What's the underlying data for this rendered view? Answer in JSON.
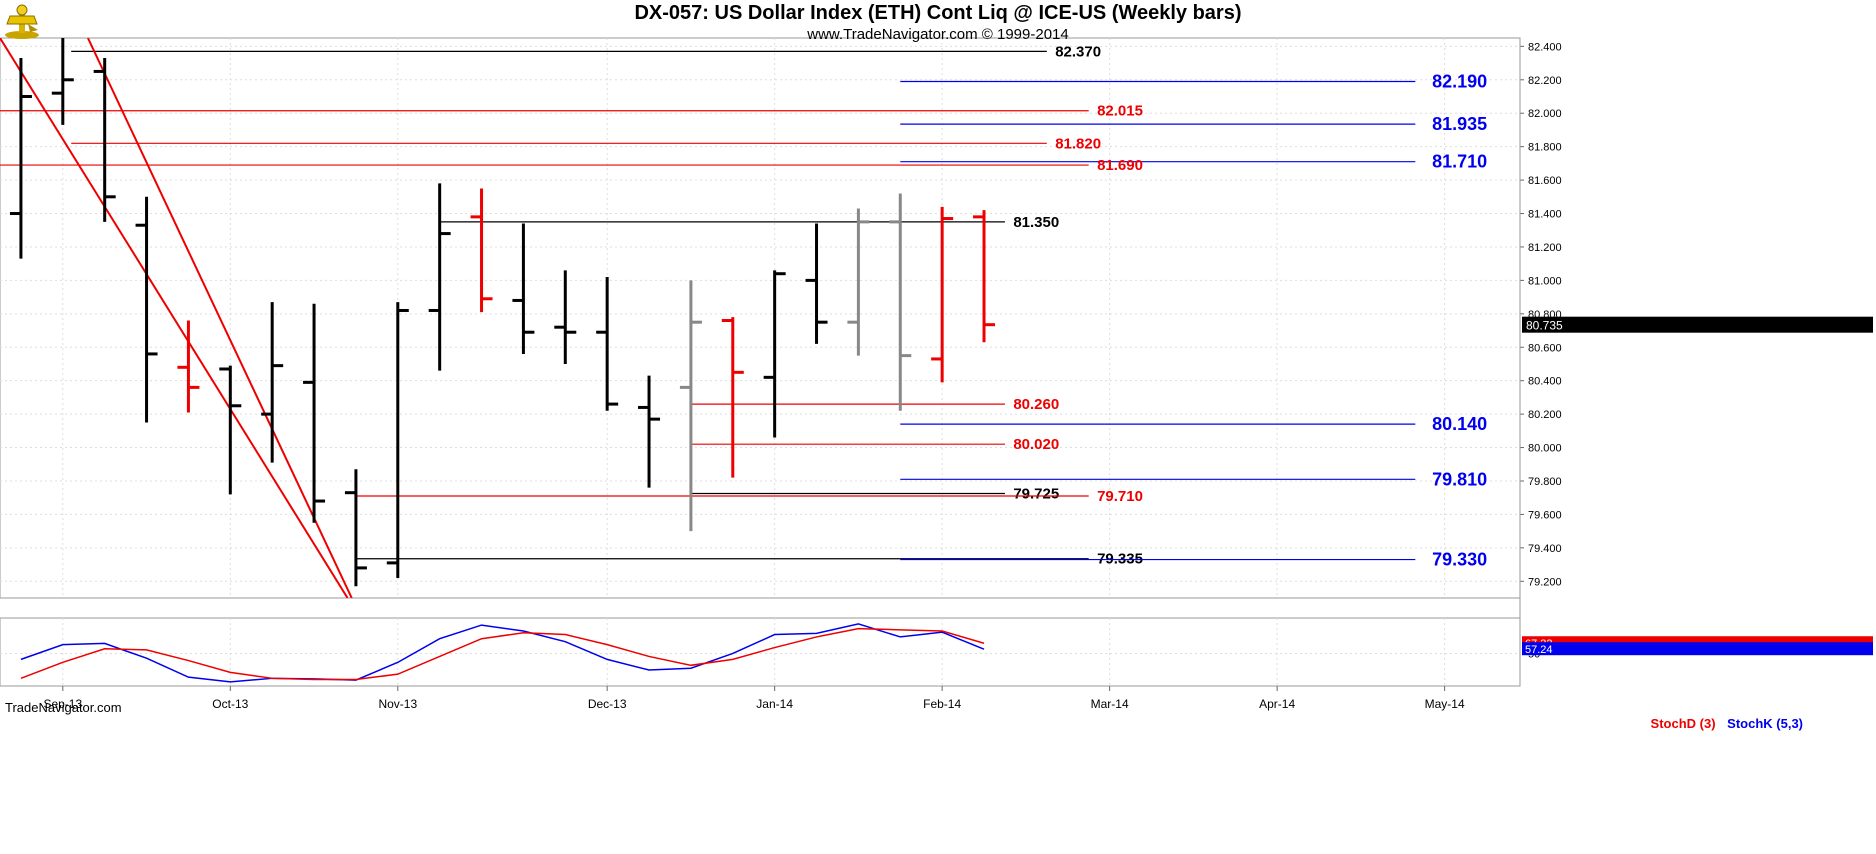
{
  "header": {
    "title": "DX-057:  US Dollar Index (ETH) Cont Liq @ ICE-US  (Weekly bars)",
    "subtitle": "www.TradeNavigator.com © 1999-2014"
  },
  "watermark": "TradeNavigator.com",
  "colors": {
    "black": "#000000",
    "red": "#ee0000",
    "gray": "#888888",
    "blue": "#0000ee",
    "grid": "#dddddd",
    "last_price_bg": "#000000",
    "stoch_d_bg": "#ee0000",
    "stoch_k_bg": "#0000ee"
  },
  "chart_data": [
    {
      "type": "ohlc",
      "title": "DX-057:  US Dollar Index (ETH) Cont Liq @ ICE-US  (Weekly bars)",
      "y_axis_side": "right",
      "ylim": [
        79.1,
        82.45
      ],
      "y_ticks": [
        "82.400",
        "82.200",
        "82.000",
        "81.800",
        "81.600",
        "81.400",
        "81.200",
        "81.000",
        "80.800",
        "80.600",
        "80.400",
        "80.200",
        "80.000",
        "79.800",
        "79.600",
        "79.400",
        "79.200"
      ],
      "x_labels": [
        {
          "i": 1.0,
          "label": "Sep-13"
        },
        {
          "i": 5.0,
          "label": "Oct-13"
        },
        {
          "i": 9.0,
          "label": "Nov-13"
        },
        {
          "i": 14.0,
          "label": "Dec-13"
        },
        {
          "i": 18.0,
          "label": "Jan-14"
        },
        {
          "i": 22.0,
          "label": "Feb-14"
        },
        {
          "i": 26.0,
          "label": "Mar-14"
        },
        {
          "i": 30.0,
          "label": "Apr-14"
        },
        {
          "i": 34.0,
          "label": "May-14"
        }
      ],
      "x_range": [
        -0.5,
        35.8
      ],
      "last_price": "80.735",
      "last_price_value": 80.735,
      "bars": [
        {
          "i": 0,
          "o": 81.4,
          "h": 82.33,
          "l": 81.13,
          "c": 82.1,
          "color": "black"
        },
        {
          "i": 1,
          "o": 82.12,
          "h": 82.5,
          "l": 81.93,
          "c": 82.2,
          "color": "black"
        },
        {
          "i": 2,
          "o": 82.25,
          "h": 82.33,
          "l": 81.35,
          "c": 81.5,
          "color": "black"
        },
        {
          "i": 3,
          "o": 81.33,
          "h": 81.5,
          "l": 80.15,
          "c": 80.56,
          "color": "black"
        },
        {
          "i": 4,
          "o": 80.48,
          "h": 80.76,
          "l": 80.21,
          "c": 80.36,
          "color": "red"
        },
        {
          "i": 5,
          "o": 80.47,
          "h": 80.49,
          "l": 79.72,
          "c": 80.25,
          "color": "black"
        },
        {
          "i": 6,
          "o": 80.2,
          "h": 80.87,
          "l": 79.91,
          "c": 80.49,
          "color": "black"
        },
        {
          "i": 7,
          "o": 80.39,
          "h": 80.86,
          "l": 79.55,
          "c": 79.68,
          "color": "black"
        },
        {
          "i": 8,
          "o": 79.73,
          "h": 79.87,
          "l": 79.17,
          "c": 79.28,
          "color": "black"
        },
        {
          "i": 9,
          "o": 79.31,
          "h": 80.87,
          "l": 79.22,
          "c": 80.82,
          "color": "black"
        },
        {
          "i": 10,
          "o": 80.82,
          "h": 81.58,
          "l": 80.46,
          "c": 81.28,
          "color": "black"
        },
        {
          "i": 11,
          "o": 81.38,
          "h": 81.55,
          "l": 80.81,
          "c": 80.89,
          "color": "red"
        },
        {
          "i": 12,
          "o": 80.88,
          "h": 81.34,
          "l": 80.56,
          "c": 80.69,
          "color": "black"
        },
        {
          "i": 13,
          "o": 80.72,
          "h": 81.06,
          "l": 80.5,
          "c": 80.69,
          "color": "black"
        },
        {
          "i": 14,
          "o": 80.69,
          "h": 81.02,
          "l": 80.22,
          "c": 80.26,
          "color": "black"
        },
        {
          "i": 15,
          "o": 80.24,
          "h": 80.43,
          "l": 79.76,
          "c": 80.17,
          "color": "black"
        },
        {
          "i": 16,
          "o": 80.36,
          "h": 81.0,
          "l": 79.5,
          "c": 80.75,
          "color": "gray"
        },
        {
          "i": 17,
          "o": 80.76,
          "h": 80.78,
          "l": 79.82,
          "c": 80.45,
          "color": "red"
        },
        {
          "i": 18,
          "o": 80.42,
          "h": 81.06,
          "l": 80.06,
          "c": 81.04,
          "color": "black"
        },
        {
          "i": 19,
          "o": 81.0,
          "h": 81.34,
          "l": 80.62,
          "c": 80.75,
          "color": "black"
        },
        {
          "i": 20,
          "o": 80.75,
          "h": 81.43,
          "l": 80.55,
          "c": 81.35,
          "color": "gray"
        },
        {
          "i": 21,
          "o": 81.35,
          "h": 81.52,
          "l": 80.22,
          "c": 80.55,
          "color": "gray"
        },
        {
          "i": 22,
          "o": 80.53,
          "h": 81.44,
          "l": 80.39,
          "c": 81.37,
          "color": "red"
        },
        {
          "i": 23,
          "o": 81.38,
          "h": 81.42,
          "l": 80.63,
          "c": 80.735,
          "color": "red"
        }
      ],
      "trendlines": [
        {
          "color": "red",
          "from": [
            -0.5,
            82.45
          ],
          "to": [
            7.8,
            79.1
          ]
        },
        {
          "color": "red",
          "from": [
            1.6,
            82.45
          ],
          "to": [
            7.9,
            79.1
          ]
        }
      ],
      "levels": [
        {
          "value": 82.37,
          "label": "82.370",
          "color": "black",
          "x_from": 1.2,
          "x_to": 24.5,
          "label_x": 24.7
        },
        {
          "value": 82.19,
          "label": "82.190",
          "color": "blue",
          "x_from": 21.0,
          "x_to": 33.3,
          "label_x": 33.7,
          "big": true
        },
        {
          "value": 82.015,
          "label": "82.015",
          "color": "red",
          "x_from": -0.5,
          "x_to": 25.5,
          "label_x": 25.7
        },
        {
          "value": 81.935,
          "label": "81.935",
          "color": "blue",
          "x_from": 21.0,
          "x_to": 33.3,
          "label_x": 33.7,
          "big": true
        },
        {
          "value": 81.82,
          "label": "81.820",
          "color": "red",
          "x_from": 1.2,
          "x_to": 24.5,
          "label_x": 24.7
        },
        {
          "value": 81.71,
          "label": "81.710",
          "color": "blue",
          "x_from": 21.0,
          "x_to": 33.3,
          "label_x": 33.7,
          "big": true
        },
        {
          "value": 81.69,
          "label": "81.690",
          "color": "red",
          "x_from": -0.5,
          "x_to": 25.5,
          "label_x": 25.7
        },
        {
          "value": 81.35,
          "label": "81.350",
          "color": "black",
          "x_from": 10.0,
          "x_to": 23.5,
          "label_x": 23.7
        },
        {
          "value": 80.26,
          "label": "80.260",
          "color": "red",
          "x_from": 16.0,
          "x_to": 23.5,
          "label_x": 23.7
        },
        {
          "value": 80.14,
          "label": "80.140",
          "color": "blue",
          "x_from": 21.0,
          "x_to": 33.3,
          "label_x": 33.7,
          "big": true
        },
        {
          "value": 80.02,
          "label": "80.020",
          "color": "red",
          "x_from": 16.0,
          "x_to": 23.5,
          "label_x": 23.7
        },
        {
          "value": 79.81,
          "label": "79.810",
          "color": "blue",
          "x_from": 21.0,
          "x_to": 33.3,
          "label_x": 33.7,
          "big": true
        },
        {
          "value": 79.725,
          "label": "79.725",
          "color": "black",
          "x_from": 16.0,
          "x_to": 23.5,
          "label_x": 23.7
        },
        {
          "value": 79.71,
          "label": "79.710",
          "color": "red",
          "x_from": 8.0,
          "x_to": 25.5,
          "label_x": 25.7
        },
        {
          "value": 79.335,
          "label": "79.335",
          "color": "black",
          "x_from": 8.0,
          "x_to": 25.5,
          "label_x": 25.7
        },
        {
          "value": 79.33,
          "label": "79.330",
          "color": "blue",
          "x_from": 21.0,
          "x_to": 33.3,
          "label_x": 33.7,
          "big": true
        }
      ]
    },
    {
      "type": "line",
      "legend": [
        "StochD (3)",
        "StochK (5,3)"
      ],
      "ylim": [
        -5,
        110
      ],
      "y_ticks": [
        "50"
      ],
      "last_values": {
        "stoch_d": "67.32",
        "stoch_k": "57.24"
      },
      "series": [
        {
          "name": "StochK (5,3)",
          "color": "blue",
          "values": [
            40,
            65,
            67,
            42,
            10,
            2,
            8,
            7,
            5,
            35,
            75,
            98,
            88,
            70,
            40,
            22,
            25,
            50,
            82,
            84,
            100,
            78,
            86,
            57.24
          ]
        },
        {
          "name": "StochD (3)",
          "color": "red",
          "values": [
            8,
            35,
            58,
            56,
            38,
            18,
            8,
            6,
            6,
            15,
            45,
            75,
            85,
            82,
            65,
            45,
            30,
            40,
            60,
            78,
            92,
            90,
            88,
            67.32
          ]
        }
      ]
    }
  ]
}
